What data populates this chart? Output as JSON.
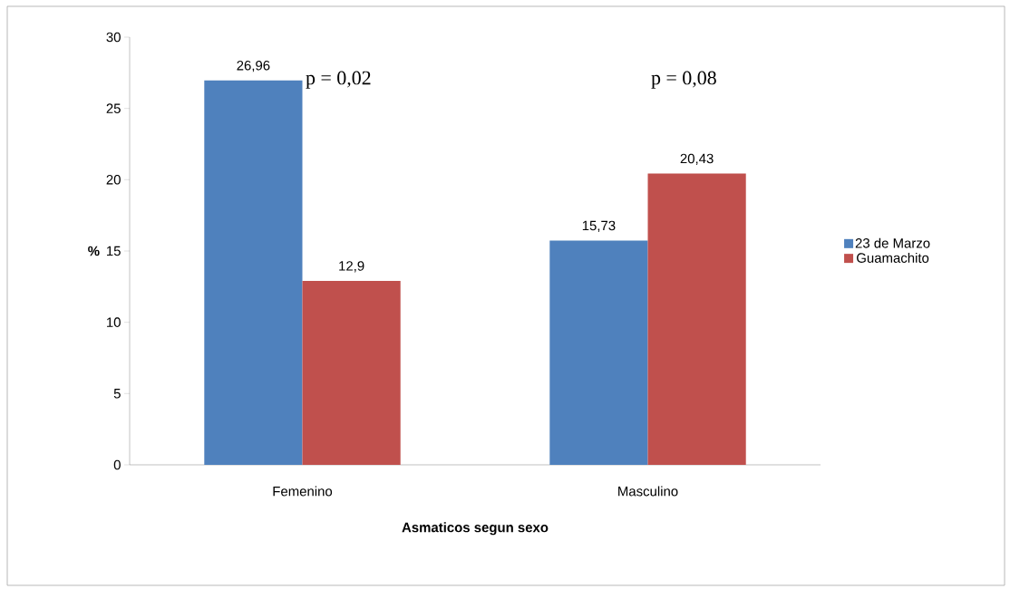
{
  "chart_data": {
    "type": "bar",
    "xlabel": "Asmaticos segun sexo",
    "ylabel": "%",
    "categories": [
      "Femenino",
      "Masculino"
    ],
    "series": [
      {
        "name": "23 de Marzo",
        "color": "#4f81bd",
        "values": [
          26.96,
          15.73
        ],
        "value_labels": [
          "26,96",
          "15,73"
        ]
      },
      {
        "name": "Guamachito",
        "color": "#c0504d",
        "values": [
          12.9,
          20.43
        ],
        "value_labels": [
          "12,9",
          "20,43"
        ]
      }
    ],
    "ylim": [
      0,
      30
    ],
    "yticks": [
      0,
      5,
      10,
      15,
      20,
      25,
      30
    ],
    "grid": false,
    "legend": "right",
    "annotations": [
      "p = 0,02",
      "p = 0,08"
    ]
  }
}
